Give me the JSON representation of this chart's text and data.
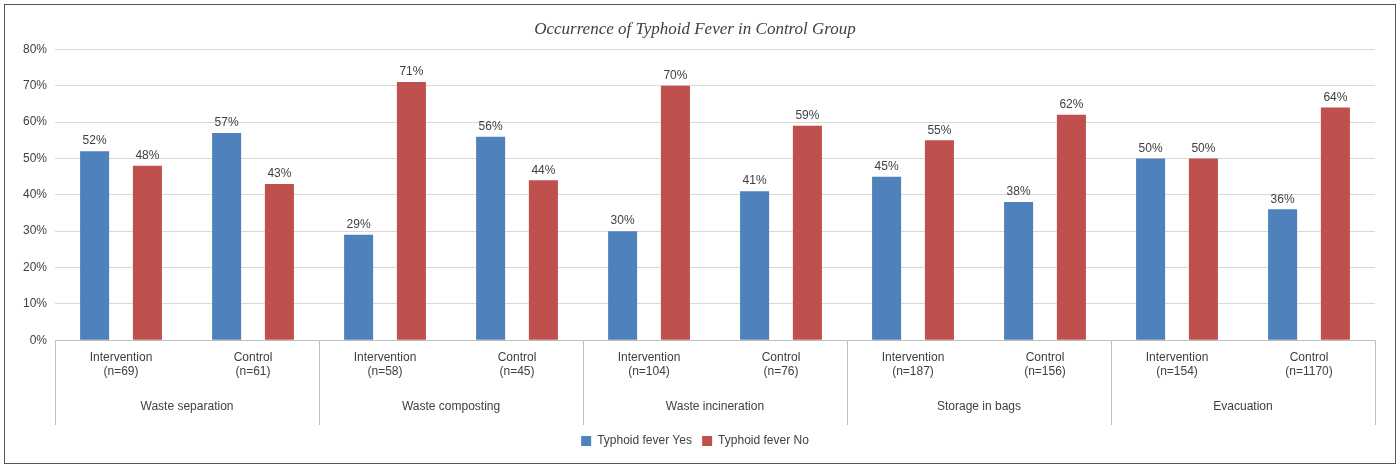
{
  "chart_data": {
    "type": "bar",
    "title": "Occurrence of Typhoid Fever in Control Group",
    "categories": [
      "Intervention (n=69)",
      "Control (n=61)",
      "Intervention (n=58)",
      "Control (n=45)",
      "Intervention (n=104)",
      "Control (n=76)",
      "Intervention (n=187)",
      "Control (n=156)",
      "Intervention (n=154)",
      "Control (n=1170)"
    ],
    "series": [
      {
        "name": "Typhoid fever Yes",
        "color": "#4f81bd",
        "values": [
          52,
          57,
          29,
          56,
          30,
          41,
          45,
          38,
          50,
          36
        ],
        "value_labels": [
          "52%",
          "57%",
          "29%",
          "56%",
          "30%",
          "41%",
          "45%",
          "38%",
          "50%",
          "36%"
        ]
      },
      {
        "name": "Typhoid fever No",
        "color": "#c0504d",
        "values": [
          48,
          43,
          71,
          44,
          70,
          59,
          55,
          62,
          50,
          64
        ],
        "value_labels": [
          "48%",
          "43%",
          "71%",
          "44%",
          "70%",
          "59%",
          "55%",
          "62%",
          "50%",
          "64%"
        ]
      }
    ],
    "ylim": [
      0,
      80
    ],
    "yticks": [
      {
        "value": 0,
        "label": "0%"
      },
      {
        "value": 10,
        "label": "10%"
      },
      {
        "value": 20,
        "label": "20%"
      },
      {
        "value": 30,
        "label": "30%"
      },
      {
        "value": 40,
        "label": "40%"
      },
      {
        "value": 50,
        "label": "50%"
      },
      {
        "value": 60,
        "label": "60%"
      },
      {
        "value": 70,
        "label": "70%"
      },
      {
        "value": 80,
        "label": "80%"
      }
    ],
    "grid": "y",
    "legend": "bottom",
    "annotations": [
      "Waste separation",
      "Waste composting",
      "Waste incineration",
      "Storage in bags",
      "Evacuation"
    ]
  }
}
